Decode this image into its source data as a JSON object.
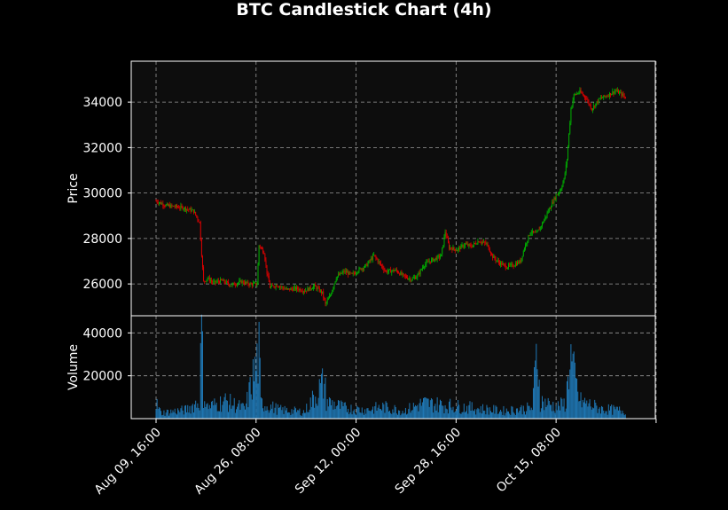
{
  "chart_data": {
    "type": "candlestick",
    "title": "BTC Candlestick Chart (4h)",
    "price_panel": {
      "ylabel": "Price",
      "yticks": [
        26000,
        28000,
        30000,
        32000,
        34000
      ],
      "ylim": [
        24600,
        35800
      ]
    },
    "volume_panel": {
      "ylabel": "Volume",
      "yticks": [
        20000,
        40000
      ],
      "ylim": [
        0,
        48000
      ]
    },
    "xticks": [
      "Aug 09, 16:00",
      "Aug 26, 08:00",
      "Sep 12, 00:00",
      "Sep 28, 16:00",
      "Oct 15, 08:00"
    ],
    "up_color": "#00b300",
    "down_color": "#e00000",
    "volume_color": "#1f77b4",
    "grid": true,
    "price_path": [
      [
        0,
        29650
      ],
      [
        10,
        29450
      ],
      [
        28,
        29350
      ],
      [
        38,
        29200
      ],
      [
        44,
        28700
      ],
      [
        46,
        27300
      ],
      [
        48,
        26100
      ],
      [
        52,
        26250
      ],
      [
        58,
        26050
      ],
      [
        66,
        26150
      ],
      [
        76,
        25950
      ],
      [
        86,
        26100
      ],
      [
        95,
        25980
      ],
      [
        102,
        26000
      ],
      [
        104,
        27700
      ],
      [
        109,
        27400
      ],
      [
        112,
        26500
      ],
      [
        115,
        25850
      ],
      [
        122,
        25950
      ],
      [
        132,
        25750
      ],
      [
        142,
        25800
      ],
      [
        150,
        25700
      ],
      [
        160,
        25900
      ],
      [
        168,
        25600
      ],
      [
        171,
        25100
      ],
      [
        176,
        25500
      ],
      [
        182,
        26300
      ],
      [
        190,
        26550
      ],
      [
        198,
        26400
      ],
      [
        204,
        26600
      ],
      [
        212,
        26800
      ],
      [
        220,
        27250
      ],
      [
        226,
        26900
      ],
      [
        232,
        26550
      ],
      [
        242,
        26600
      ],
      [
        250,
        26350
      ],
      [
        258,
        26200
      ],
      [
        264,
        26350
      ],
      [
        270,
        26800
      ],
      [
        276,
        27000
      ],
      [
        284,
        27150
      ],
      [
        288,
        27250
      ],
      [
        292,
        28300
      ],
      [
        296,
        27600
      ],
      [
        304,
        27500
      ],
      [
        312,
        27750
      ],
      [
        318,
        27650
      ],
      [
        326,
        27900
      ],
      [
        334,
        27750
      ],
      [
        340,
        27200
      ],
      [
        346,
        26950
      ],
      [
        354,
        26750
      ],
      [
        362,
        26850
      ],
      [
        368,
        27000
      ],
      [
        372,
        27600
      ],
      [
        378,
        28300
      ],
      [
        384,
        28200
      ],
      [
        390,
        28650
      ],
      [
        396,
        29200
      ],
      [
        404,
        29900
      ],
      [
        408,
        30100
      ],
      [
        412,
        30600
      ],
      [
        415,
        31500
      ],
      [
        419,
        33700
      ],
      [
        422,
        34300
      ],
      [
        428,
        34450
      ],
      [
        434,
        34200
      ],
      [
        440,
        33700
      ],
      [
        448,
        34150
      ],
      [
        456,
        34300
      ],
      [
        464,
        34500
      ],
      [
        470,
        34350
      ],
      [
        474,
        34200
      ]
    ],
    "volume_path": [
      [
        0,
        8000
      ],
      [
        5,
        3000
      ],
      [
        30,
        4500
      ],
      [
        44,
        9000
      ],
      [
        46,
        47000
      ],
      [
        48,
        13000
      ],
      [
        52,
        6000
      ],
      [
        70,
        9000
      ],
      [
        90,
        5000
      ],
      [
        104,
        33000
      ],
      [
        106,
        8000
      ],
      [
        125,
        4500
      ],
      [
        150,
        3500
      ],
      [
        170,
        19000
      ],
      [
        172,
        9000
      ],
      [
        190,
        5500
      ],
      [
        210,
        4500
      ],
      [
        230,
        6000
      ],
      [
        250,
        4000
      ],
      [
        270,
        8000
      ],
      [
        290,
        7000
      ],
      [
        310,
        6000
      ],
      [
        330,
        5000
      ],
      [
        350,
        4000
      ],
      [
        380,
        5500
      ],
      [
        385,
        36000
      ],
      [
        388,
        9000
      ],
      [
        405,
        6000
      ],
      [
        414,
        8000
      ],
      [
        418,
        34000
      ],
      [
        422,
        22000
      ],
      [
        428,
        9000
      ],
      [
        450,
        5000
      ],
      [
        474,
        4000
      ]
    ]
  }
}
